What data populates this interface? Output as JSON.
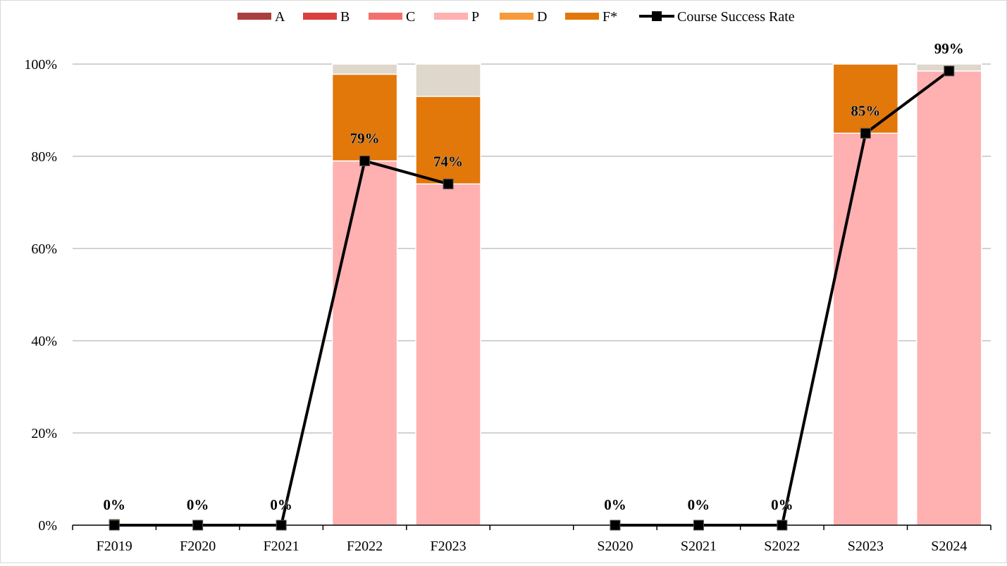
{
  "chart_data": {
    "type": "bar",
    "stacked": true,
    "categories": [
      "F2019",
      "F2020",
      "F2021",
      "F2022",
      "F2023",
      "",
      "S2020",
      "S2021",
      "S2022",
      "S2023",
      "S2024"
    ],
    "series": [
      {
        "name": "A",
        "color": "#a9403f",
        "values": [
          0,
          0,
          0,
          0,
          0,
          0,
          0,
          0,
          0,
          0,
          0
        ]
      },
      {
        "name": "B",
        "color": "#d8413e",
        "values": [
          0,
          0,
          0,
          0,
          0,
          0,
          0,
          0,
          0,
          0,
          0
        ]
      },
      {
        "name": "C",
        "color": "#f4706c",
        "values": [
          0,
          0,
          0,
          0,
          0,
          0,
          0,
          0,
          0,
          0,
          0
        ]
      },
      {
        "name": "P",
        "color": "#ffb0b1",
        "values": [
          0,
          0,
          0,
          79,
          74,
          0,
          0,
          0,
          0,
          85,
          98.5
        ]
      },
      {
        "name": "D",
        "color": "#f79a3c",
        "values": [
          0,
          0,
          0,
          0,
          0,
          0,
          0,
          0,
          0,
          0,
          0
        ]
      },
      {
        "name": "F*",
        "color": "#e2770a",
        "values": [
          0,
          0,
          0,
          18.8,
          19,
          0,
          0,
          0,
          0,
          15,
          0
        ]
      },
      {
        "name": "",
        "color": "#dfd6cc",
        "values": [
          0,
          0,
          0,
          2.2,
          7,
          0,
          0,
          0,
          0,
          0,
          1.5
        ]
      }
    ],
    "line": {
      "name": "Course Success Rate",
      "color": "#000000",
      "segments": [
        {
          "indices": [
            0,
            1,
            2,
            3,
            4
          ],
          "values": [
            0,
            0,
            0,
            79,
            74
          ]
        },
        {
          "indices": [
            6,
            7,
            8,
            9,
            10
          ],
          "values": [
            0,
            0,
            0,
            85,
            98.5
          ]
        }
      ],
      "labels": [
        "0%",
        "0%",
        "0%",
        "79%",
        "74%",
        "",
        "0%",
        "0%",
        "0%",
        "85%",
        "99%"
      ]
    },
    "y_ticks": [
      "0%",
      "20%",
      "40%",
      "60%",
      "80%",
      "100%"
    ],
    "y_tick_values": [
      0,
      20,
      40,
      60,
      80,
      100
    ],
    "ylim": [
      0,
      100
    ],
    "grid": true,
    "legend_position": "top"
  }
}
